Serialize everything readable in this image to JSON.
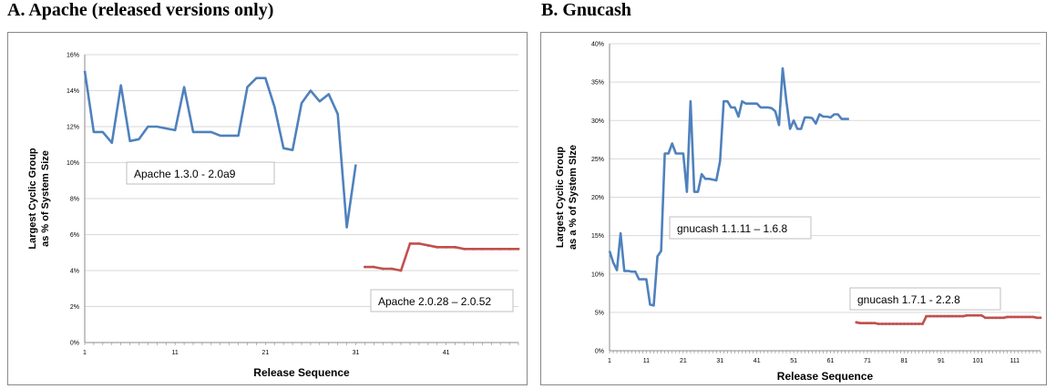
{
  "panels": [
    {
      "title": "A. Apache (released versions only)"
    },
    {
      "title": "B. Gnucash"
    }
  ],
  "chart_data": [
    {
      "type": "line",
      "title": "A. Apache (released versions only)",
      "xlabel": "Release Sequence",
      "ylabel": [
        "Largest Cyclic Group",
        "as % of System Size"
      ],
      "ylim": [
        0,
        16
      ],
      "yticks": [
        0,
        2,
        4,
        6,
        8,
        10,
        12,
        14,
        16
      ],
      "ytick_labels": [
        "0%",
        "2%",
        "4%",
        "6%",
        "8%",
        "10%",
        "12%",
        "14%",
        "16%"
      ],
      "xlim": [
        1,
        49
      ],
      "xticks": [
        1,
        11,
        21,
        31,
        41
      ],
      "xtick_labels": [
        "1",
        "11",
        "21",
        "31",
        "41"
      ],
      "grid": true,
      "series": [
        {
          "name": "Apache 1.3.0 - 2.0a9",
          "color": "#4f81bd",
          "x": [
            1,
            2,
            3,
            4,
            5,
            6,
            7,
            8,
            9,
            10,
            11,
            12,
            13,
            14,
            15,
            16,
            17,
            18,
            19,
            20,
            21,
            22,
            23,
            24,
            25,
            26,
            27,
            28,
            29,
            30,
            31
          ],
          "y": [
            15.1,
            11.7,
            11.7,
            11.1,
            14.3,
            11.2,
            11.3,
            12.0,
            12.0,
            11.9,
            11.8,
            14.2,
            11.7,
            11.7,
            11.7,
            11.5,
            11.5,
            11.5,
            14.2,
            14.7,
            14.7,
            13.1,
            10.8,
            10.7,
            13.3,
            14.0,
            13.4,
            13.8,
            12.7,
            6.4,
            9.9
          ]
        },
        {
          "name": "Apache 2.0.28 – 2.0.52",
          "color": "#c0504d",
          "x": [
            32,
            33,
            34,
            35,
            36,
            37,
            38,
            39,
            40,
            41,
            42,
            43,
            44,
            45,
            46,
            47,
            48,
            49
          ],
          "y": [
            4.2,
            4.2,
            4.1,
            4.1,
            4.0,
            5.5,
            5.5,
            5.4,
            5.3,
            5.3,
            5.3,
            5.2,
            5.2,
            5.2,
            5.2,
            5.2,
            5.2,
            5.2
          ]
        }
      ]
    },
    {
      "type": "line",
      "title": "B. Gnucash",
      "xlabel": "Release Sequence",
      "ylabel": [
        "Largest Cyclic Group",
        "as a % of System SIze"
      ],
      "ylim": [
        0,
        40
      ],
      "yticks": [
        0,
        5,
        10,
        15,
        20,
        25,
        30,
        35,
        40
      ],
      "ytick_labels": [
        "0%",
        "5%",
        "10%",
        "15%",
        "20%",
        "25%",
        "30%",
        "35%",
        "40%"
      ],
      "xlim": [
        1,
        118
      ],
      "xticks": [
        1,
        11,
        21,
        31,
        41,
        51,
        61,
        71,
        81,
        91,
        101,
        111
      ],
      "xtick_labels": [
        "1",
        "11",
        "21",
        "31",
        "41",
        "51",
        "61",
        "71",
        "81",
        "91",
        "101",
        "111"
      ],
      "grid": true,
      "series": [
        {
          "name": "gnucash 1.1.11 – 1.6.8",
          "color": "#4f81bd",
          "x": [
            1,
            2,
            3,
            4,
            5,
            6,
            7,
            8,
            9,
            10,
            11,
            12,
            13,
            14,
            15,
            16,
            17,
            18,
            19,
            20,
            21,
            22,
            23,
            24,
            25,
            26,
            27,
            28,
            29,
            30,
            31,
            32,
            33,
            34,
            35,
            36,
            37,
            38,
            39,
            40,
            41,
            42,
            43,
            44,
            45,
            46,
            47,
            48,
            49,
            50,
            51,
            52,
            53,
            54,
            55,
            56,
            57,
            58,
            59,
            60,
            61,
            62,
            63,
            64,
            65,
            66
          ],
          "y": [
            13,
            11.5,
            10.5,
            15.3,
            10.4,
            10.4,
            10.3,
            10.3,
            9.3,
            9.3,
            9.3,
            6.0,
            5.9,
            12.3,
            13.0,
            25.7,
            25.7,
            27.0,
            25.7,
            25.7,
            25.7,
            20.7,
            32.5,
            20.7,
            20.7,
            23.0,
            22.4,
            22.4,
            22.3,
            22.2,
            24.7,
            32.5,
            32.5,
            31.7,
            31.7,
            30.5,
            32.5,
            32.2,
            32.2,
            32.2,
            32.2,
            31.7,
            31.7,
            31.7,
            31.6,
            31.2,
            29.4,
            36.8,
            32.5,
            28.9,
            30.0,
            28.9,
            28.9,
            30.4,
            30.4,
            30.3,
            29.6,
            30.8,
            30.5,
            30.5,
            30.4,
            30.8,
            30.8,
            30.2,
            30.2,
            30.2
          ]
        },
        {
          "name": "gnucash 1.7.1  - 2.2.8",
          "color": "#c0504d",
          "x": [
            68,
            69,
            70,
            71,
            72,
            73,
            74,
            75,
            76,
            77,
            78,
            79,
            80,
            81,
            82,
            83,
            84,
            85,
            86,
            87,
            88,
            89,
            90,
            91,
            92,
            93,
            94,
            95,
            96,
            97,
            98,
            99,
            100,
            101,
            102,
            103,
            104,
            105,
            106,
            107,
            108,
            109,
            110,
            111,
            112,
            113,
            114,
            115,
            116,
            117,
            118
          ],
          "y": [
            3.7,
            3.6,
            3.6,
            3.6,
            3.6,
            3.6,
            3.5,
            3.5,
            3.5,
            3.5,
            3.5,
            3.5,
            3.5,
            3.5,
            3.5,
            3.5,
            3.5,
            3.5,
            3.5,
            4.5,
            4.5,
            4.5,
            4.5,
            4.5,
            4.5,
            4.5,
            4.5,
            4.5,
            4.5,
            4.5,
            4.6,
            4.6,
            4.6,
            4.6,
            4.6,
            4.3,
            4.3,
            4.3,
            4.3,
            4.3,
            4.3,
            4.4,
            4.4,
            4.4,
            4.4,
            4.4,
            4.4,
            4.4,
            4.4,
            4.3,
            4.3
          ]
        }
      ]
    }
  ],
  "colors": {
    "grid": "#d9d9d9",
    "axis": "#888888",
    "blue": "#4f81bd",
    "red": "#c0504d"
  }
}
